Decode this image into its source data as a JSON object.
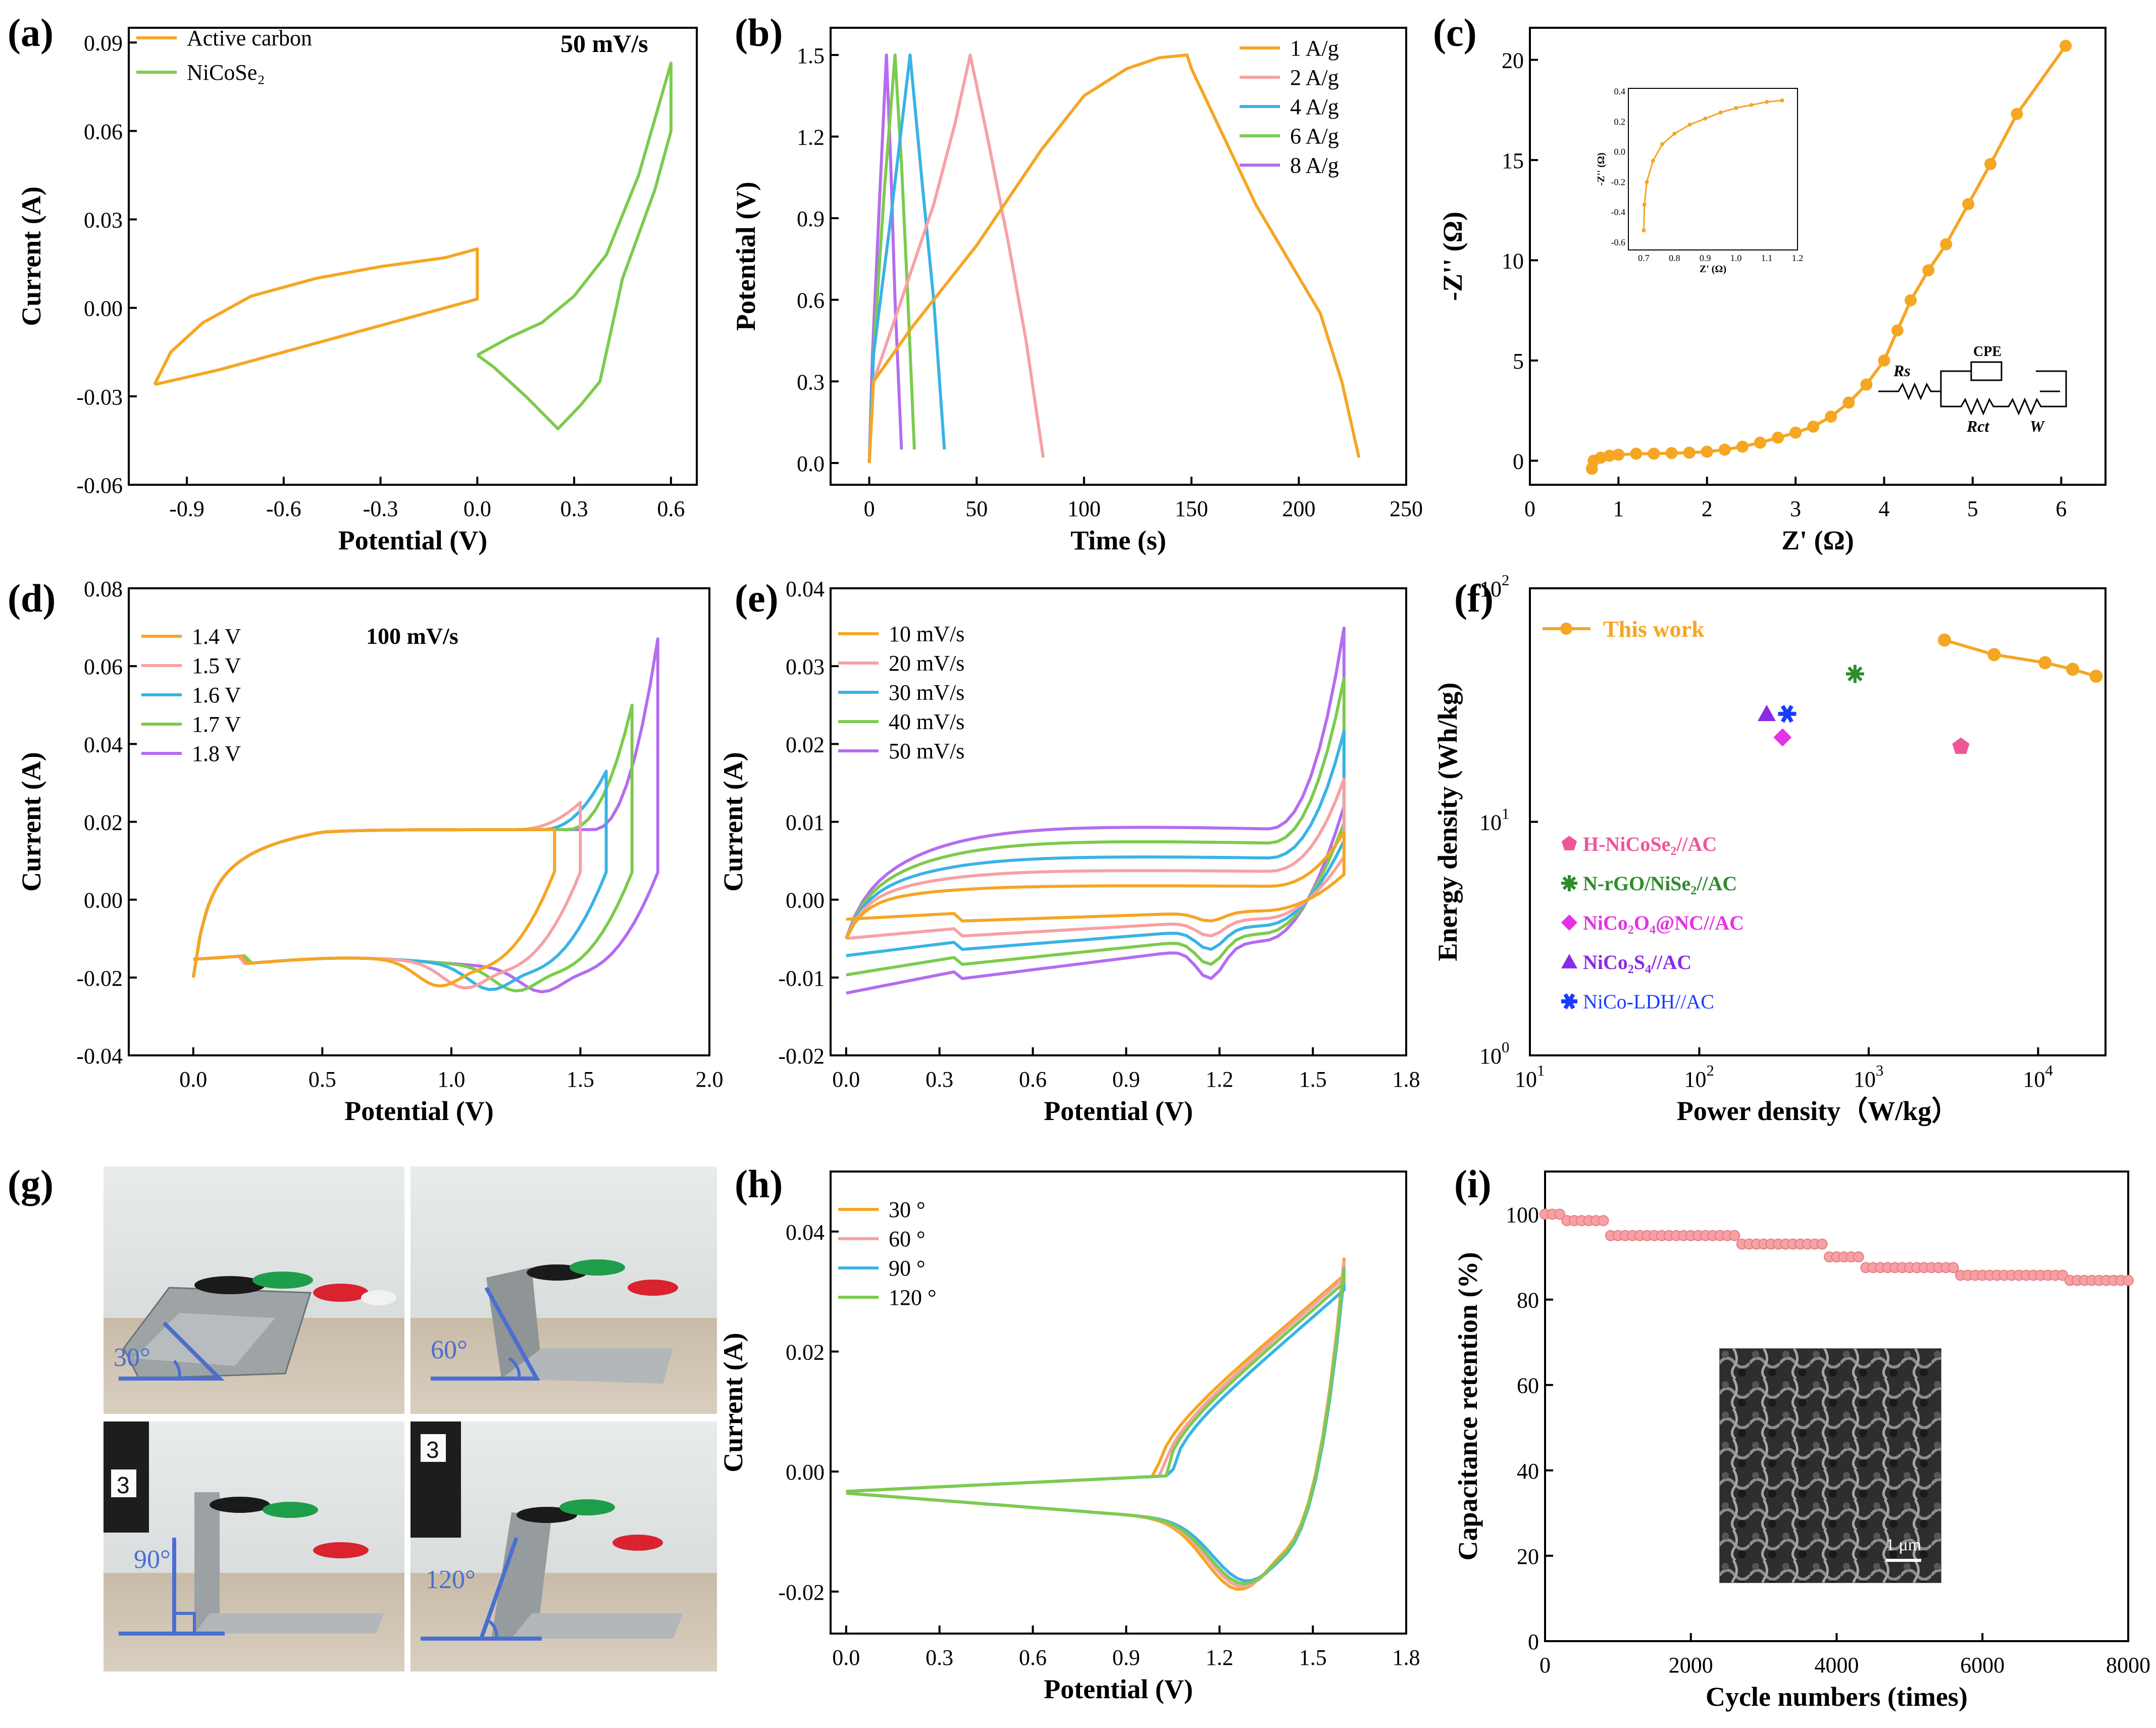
{
  "figure": {
    "panel_labels": [
      "(a)",
      "(b)",
      "(c)",
      "(d)",
      "(e)",
      "(f)",
      "(g)",
      "(h)",
      "(i)"
    ],
    "photo_angles": [
      "30°",
      "60°",
      "90°",
      "120°"
    ],
    "photo_badges": [
      "3",
      "3",
      "3"
    ],
    "sem_scale": "1 μm"
  },
  "colors": {
    "orange": "#f5a623",
    "pink": "#f7a1a4",
    "blue": "#39b3e6",
    "green": "#7ccb4e",
    "purple": "#b56cf0",
    "marker_pink": "#f0559a",
    "marker_green": "#2e8b2e",
    "marker_magenta": "#e432e4",
    "marker_violet": "#8a2be2",
    "marker_blue": "#1a3cff",
    "photo_annot": "#4a6fd0"
  },
  "chart_data": [
    {
      "id": "a",
      "type": "line",
      "xlabel": "Potential (V)",
      "ylabel": "Current (A)",
      "xlim": [
        -1.08,
        0.68
      ],
      "ylim": [
        -0.06,
        0.095
      ],
      "xticks": [
        "-0.9",
        "-0.6",
        "-0.3",
        "0.0",
        "0.3",
        "0.6"
      ],
      "xtick_values": [
        -0.9,
        -0.6,
        -0.3,
        0.0,
        0.3,
        0.6
      ],
      "yticks": [
        "-0.06",
        "-0.03",
        "0.00",
        "0.03",
        "0.06",
        "0.09"
      ],
      "ytick_values": [
        -0.06,
        -0.03,
        0.0,
        0.03,
        0.06,
        0.09
      ],
      "annotation": "50 mV/s",
      "series": [
        {
          "name": "Active carbon",
          "color": "orange",
          "points": [
            [
              -1.0,
              -0.026
            ],
            [
              -0.95,
              -0.015
            ],
            [
              -0.85,
              -0.005
            ],
            [
              -0.7,
              0.004
            ],
            [
              -0.5,
              0.01
            ],
            [
              -0.3,
              0.014
            ],
            [
              -0.1,
              0.017
            ],
            [
              0.0,
              0.02
            ],
            [
              0.0,
              0.003
            ],
            [
              -0.2,
              -0.003
            ],
            [
              -0.5,
              -0.012
            ],
            [
              -0.8,
              -0.021
            ],
            [
              -1.0,
              -0.026
            ]
          ]
        },
        {
          "name": "NiCoSe₂",
          "color": "green",
          "points": [
            [
              0.0,
              -0.016
            ],
            [
              0.1,
              -0.01
            ],
            [
              0.2,
              -0.005
            ],
            [
              0.3,
              0.004
            ],
            [
              0.4,
              0.018
            ],
            [
              0.5,
              0.045
            ],
            [
              0.6,
              0.083
            ],
            [
              0.6,
              0.06
            ],
            [
              0.55,
              0.04
            ],
            [
              0.45,
              0.01
            ],
            [
              0.38,
              -0.025
            ],
            [
              0.32,
              -0.033
            ],
            [
              0.25,
              -0.041
            ],
            [
              0.15,
              -0.03
            ],
            [
              0.05,
              -0.02
            ],
            [
              0.0,
              -0.016
            ]
          ]
        }
      ]
    },
    {
      "id": "b",
      "type": "line",
      "xlabel": "Time (s)",
      "ylabel": "Potential (V)",
      "xlim": [
        -18,
        250
      ],
      "ylim": [
        -0.08,
        1.6
      ],
      "xticks": [
        "0",
        "50",
        "100",
        "150",
        "200",
        "250"
      ],
      "xtick_values": [
        0,
        50,
        100,
        150,
        200,
        250
      ],
      "yticks": [
        "0.0",
        "0.3",
        "0.6",
        "0.9",
        "1.2",
        "1.5"
      ],
      "ytick_values": [
        0.0,
        0.3,
        0.6,
        0.9,
        1.2,
        1.5
      ],
      "series": [
        {
          "name": "1 A/g",
          "color": "orange",
          "points": [
            [
              0,
              0
            ],
            [
              2,
              0.3
            ],
            [
              20,
              0.5
            ],
            [
              50,
              0.8
            ],
            [
              80,
              1.15
            ],
            [
              100,
              1.35
            ],
            [
              120,
              1.45
            ],
            [
              135,
              1.49
            ],
            [
              148,
              1.5
            ],
            [
              150,
              1.45
            ],
            [
              165,
              1.2
            ],
            [
              180,
              0.95
            ],
            [
              195,
              0.75
            ],
            [
              210,
              0.55
            ],
            [
              220,
              0.3
            ],
            [
              228,
              0.02
            ]
          ]
        },
        {
          "name": "2 A/g",
          "color": "pink",
          "points": [
            [
              0,
              0
            ],
            [
              2,
              0.3
            ],
            [
              15,
              0.6
            ],
            [
              30,
              0.95
            ],
            [
              40,
              1.25
            ],
            [
              47,
              1.5
            ],
            [
              55,
              1.2
            ],
            [
              65,
              0.8
            ],
            [
              73,
              0.45
            ],
            [
              81,
              0.02
            ]
          ]
        },
        {
          "name": "4 A/g",
          "color": "blue",
          "points": [
            [
              0,
              0
            ],
            [
              2,
              0.4
            ],
            [
              10,
              0.9
            ],
            [
              19,
              1.5
            ],
            [
              25,
              1.0
            ],
            [
              30,
              0.6
            ],
            [
              35,
              0.05
            ]
          ]
        },
        {
          "name": "6 A/g",
          "color": "green",
          "points": [
            [
              0,
              0
            ],
            [
              2,
              0.4
            ],
            [
              7,
              1.0
            ],
            [
              12,
              1.5
            ],
            [
              15,
              1.1
            ],
            [
              18,
              0.6
            ],
            [
              21,
              0.05
            ]
          ]
        },
        {
          "name": "8 A/g",
          "color": "purple",
          "points": [
            [
              0,
              0
            ],
            [
              1.5,
              0.4
            ],
            [
              5,
              1.0
            ],
            [
              8,
              1.5
            ],
            [
              10,
              1.1
            ],
            [
              12,
              0.6
            ],
            [
              15,
              0.05
            ]
          ]
        }
      ]
    },
    {
      "id": "c",
      "type": "scatter",
      "xlabel": "Z' (Ω)",
      "ylabel": "-Z'' (Ω)",
      "xlim": [
        0,
        6.5
      ],
      "ylim": [
        -1.2,
        21.6
      ],
      "xticks": [
        "0",
        "1",
        "2",
        "3",
        "4",
        "5",
        "6"
      ],
      "xtick_values": [
        0,
        1,
        2,
        3,
        4,
        5,
        6
      ],
      "yticks": [
        "0",
        "5",
        "10",
        "15",
        "20"
      ],
      "ytick_values": [
        0,
        5,
        10,
        15,
        20
      ],
      "series": [
        {
          "name": "",
          "color": "orange",
          "points": [
            [
              0.7,
              -0.4
            ],
            [
              0.72,
              0.0
            ],
            [
              0.8,
              0.15
            ],
            [
              0.9,
              0.25
            ],
            [
              1.0,
              0.3
            ],
            [
              1.2,
              0.35
            ],
            [
              1.4,
              0.35
            ],
            [
              1.6,
              0.38
            ],
            [
              1.8,
              0.4
            ],
            [
              2.0,
              0.45
            ],
            [
              2.2,
              0.55
            ],
            [
              2.4,
              0.7
            ],
            [
              2.6,
              0.9
            ],
            [
              2.8,
              1.15
            ],
            [
              3.0,
              1.4
            ],
            [
              3.2,
              1.7
            ],
            [
              3.4,
              2.2
            ],
            [
              3.6,
              2.9
            ],
            [
              3.8,
              3.8
            ],
            [
              4.0,
              5.0
            ],
            [
              4.15,
              6.5
            ],
            [
              4.3,
              8.0
            ],
            [
              4.5,
              9.5
            ],
            [
              4.7,
              10.8
            ],
            [
              4.95,
              12.8
            ],
            [
              5.2,
              14.8
            ],
            [
              5.5,
              17.3
            ],
            [
              6.05,
              20.7
            ]
          ]
        }
      ],
      "inset": {
        "xlabel": "Z' (Ω)",
        "ylabel": "-Z'' (Ω)",
        "xlim": [
          0.65,
          1.2
        ],
        "ylim": [
          -0.65,
          0.42
        ],
        "xticks": [
          "0.7",
          "0.8",
          "0.9",
          "1.0",
          "1.1",
          "1.2"
        ],
        "xtick_values": [
          0.7,
          0.8,
          0.9,
          1.0,
          1.1,
          1.2
        ],
        "yticks": [
          "-0.6",
          "-0.4",
          "-0.2",
          "0.0",
          "0.2",
          "0.4"
        ],
        "ytick_values": [
          -0.6,
          -0.4,
          -0.2,
          0.0,
          0.2,
          0.4
        ],
        "points": [
          [
            0.7,
            -0.52
          ],
          [
            0.702,
            -0.35
          ],
          [
            0.71,
            -0.2
          ],
          [
            0.73,
            -0.06
          ],
          [
            0.76,
            0.05
          ],
          [
            0.8,
            0.12
          ],
          [
            0.85,
            0.18
          ],
          [
            0.9,
            0.22
          ],
          [
            0.95,
            0.26
          ],
          [
            1.0,
            0.29
          ],
          [
            1.05,
            0.31
          ],
          [
            1.1,
            0.33
          ],
          [
            1.15,
            0.34
          ]
        ]
      },
      "circuit_labels": [
        "Rs",
        "CPE",
        "Rct",
        "W"
      ]
    },
    {
      "id": "d",
      "type": "line",
      "xlabel": "Potential (V)",
      "ylabel": "Current (A)",
      "xlim": [
        -0.25,
        2.0
      ],
      "ylim": [
        -0.04,
        0.08
      ],
      "xticks": [
        "0.0",
        "0.5",
        "1.0",
        "1.5",
        "2.0"
      ],
      "xtick_values": [
        0.0,
        0.5,
        1.0,
        1.5,
        2.0
      ],
      "yticks": [
        "-0.04",
        "-0.02",
        "0.00",
        "0.02",
        "0.04",
        "0.06",
        "0.08"
      ],
      "ytick_values": [
        -0.04,
        -0.02,
        0.0,
        0.02,
        0.04,
        0.06,
        0.08
      ],
      "annotation": "100 mV/s",
      "series": [
        {
          "name": "1.4 V",
          "color": "orange",
          "vmax": 1.4,
          "imax": 0.018
        },
        {
          "name": "1.5 V",
          "color": "pink",
          "vmax": 1.5,
          "imax": 0.025
        },
        {
          "name": "1.6 V",
          "color": "blue",
          "vmax": 1.6,
          "imax": 0.033
        },
        {
          "name": "1.7 V",
          "color": "green",
          "vmax": 1.7,
          "imax": 0.05
        },
        {
          "name": "1.8 V",
          "color": "purple",
          "vmax": 1.8,
          "imax": 0.067
        }
      ]
    },
    {
      "id": "e",
      "type": "line",
      "xlabel": "Potential (V)",
      "ylabel": "Current (A)",
      "xlim": [
        -0.05,
        1.8
      ],
      "ylim": [
        -0.02,
        0.04
      ],
      "xticks": [
        "0.0",
        "0.3",
        "0.6",
        "0.9",
        "1.2",
        "1.5",
        "1.8"
      ],
      "xtick_values": [
        0.0,
        0.3,
        0.6,
        0.9,
        1.2,
        1.5,
        1.8
      ],
      "yticks": [
        "-0.02",
        "-0.01",
        "0.00",
        "0.01",
        "0.02",
        "0.03",
        "0.04"
      ],
      "ytick_values": [
        -0.02,
        -0.01,
        0.0,
        0.01,
        0.02,
        0.03,
        0.04
      ],
      "series": [
        {
          "name": "10 mV/s",
          "color": "orange",
          "scale": 0.27
        },
        {
          "name": "20 mV/s",
          "color": "pink",
          "scale": 0.46
        },
        {
          "name": "30 mV/s",
          "color": "blue",
          "scale": 0.63
        },
        {
          "name": "40 mV/s",
          "color": "green",
          "scale": 0.82
        },
        {
          "name": "50 mV/s",
          "color": "purple",
          "scale": 1.0
        }
      ]
    },
    {
      "id": "f",
      "type": "scatter",
      "xlabel": "Power density（W/kg）",
      "ylabel": "Energy density (Wh/kg)",
      "xscale": "log",
      "yscale": "log",
      "xlim": [
        10,
        25000
      ],
      "ylim": [
        1,
        100
      ],
      "xticks": [
        {
          "base": "10",
          "exp": "1"
        },
        {
          "base": "10",
          "exp": "2"
        },
        {
          "base": "10",
          "exp": "3"
        },
        {
          "base": "10",
          "exp": "4"
        }
      ],
      "xtick_values": [
        10,
        100,
        1000,
        10000
      ],
      "yticks": [
        {
          "base": "10",
          "exp": "0"
        },
        {
          "base": "10",
          "exp": "1"
        },
        {
          "base": "10",
          "exp": "2"
        }
      ],
      "ytick_values": [
        1,
        10,
        100
      ],
      "this_work": {
        "name": "This work",
        "color": "orange",
        "points": [
          [
            2800,
            60
          ],
          [
            5500,
            52
          ],
          [
            11000,
            48
          ],
          [
            16000,
            45
          ],
          [
            22000,
            42
          ]
        ]
      },
      "references": [
        {
          "name": "H-NiCoSe₂//AC",
          "color": "marker_pink",
          "marker": "pentagon",
          "x": 3500,
          "y": 21
        },
        {
          "name": "N-rGO/NiSe₂//AC",
          "color": "marker_green",
          "marker": "star",
          "x": 830,
          "y": 43
        },
        {
          "name": "NiCo₂O₄@NC//AC",
          "color": "marker_magenta",
          "marker": "diamond",
          "x": 310,
          "y": 23
        },
        {
          "name": "NiCo₂S₄//AC",
          "color": "marker_violet",
          "marker": "triangle",
          "x": 250,
          "y": 29
        },
        {
          "name": "NiCo-LDH//AC",
          "color": "marker_blue",
          "marker": "asterisk",
          "x": 330,
          "y": 29
        }
      ]
    },
    {
      "id": "h",
      "type": "line",
      "xlabel": "Potential (V)",
      "ylabel": "Current (A)",
      "xlim": [
        -0.05,
        1.8
      ],
      "ylim": [
        -0.027,
        0.05
      ],
      "xticks": [
        "0.0",
        "0.3",
        "0.6",
        "0.9",
        "1.2",
        "1.5",
        "1.8"
      ],
      "xtick_values": [
        0.0,
        0.3,
        0.6,
        0.9,
        1.2,
        1.5,
        1.8
      ],
      "yticks": [
        "-0.02",
        "0.00",
        "0.02",
        "0.04"
      ],
      "ytick_values": [
        -0.02,
        0.0,
        0.02,
        0.04
      ],
      "series": [
        {
          "name": "30 °",
          "color": "orange",
          "shift": 0.0,
          "imax": 0.0395,
          "imin": -0.02
        },
        {
          "name": "60 °",
          "color": "pink",
          "shift": 0.02,
          "imax": 0.039,
          "imin": -0.0195
        },
        {
          "name": "90 °",
          "color": "blue",
          "shift": 0.05,
          "imax": 0.0365,
          "imin": -0.0185
        },
        {
          "name": "120 °",
          "color": "green",
          "shift": 0.03,
          "imax": 0.038,
          "imin": -0.019
        }
      ]
    },
    {
      "id": "i",
      "type": "scatter",
      "xlabel": "Cycle numbers (times)",
      "ylabel": "Capacitance retention (%)",
      "xlim": [
        0,
        8000
      ],
      "ylim": [
        0,
        110
      ],
      "xticks": [
        "0",
        "2000",
        "4000",
        "6000",
        "8000"
      ],
      "xtick_values": [
        0,
        2000,
        4000,
        6000,
        8000
      ],
      "yticks": [
        "0",
        "20",
        "40",
        "60",
        "80",
        "100"
      ],
      "ytick_values": [
        0,
        20,
        40,
        60,
        80,
        100
      ],
      "series": [
        {
          "name": "",
          "color": "pink",
          "steps": [
            [
              0,
              100
            ],
            [
              300,
              98.5
            ],
            [
              900,
              95
            ],
            [
              2700,
              93
            ],
            [
              3900,
              90
            ],
            [
              4400,
              87.5
            ],
            [
              5700,
              85.7
            ],
            [
              7200,
              84.5
            ],
            [
              8000,
              84.5
            ]
          ]
        }
      ]
    }
  ]
}
